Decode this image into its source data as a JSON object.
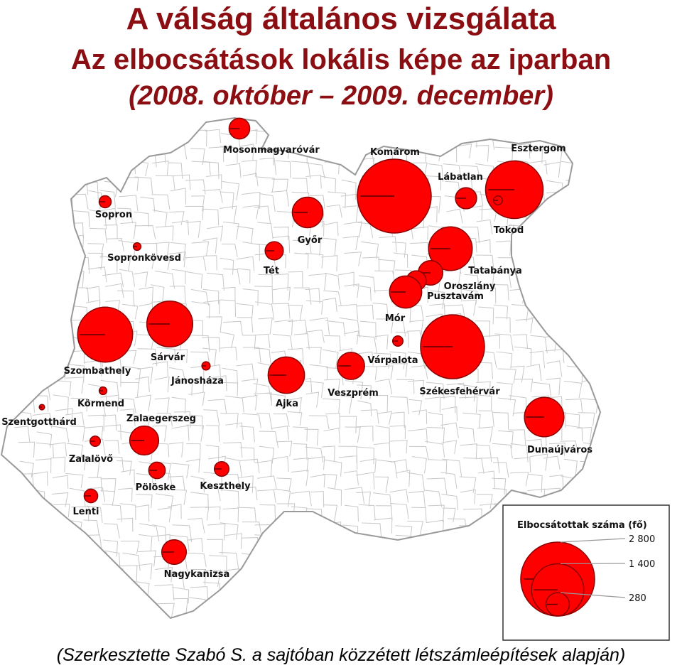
{
  "title": {
    "main": "A válság általános vizsgálata",
    "sub": "Az elbocsátások lokális képe az iparban",
    "period": "(2008. október – 2009. december)"
  },
  "credit": "(Szerkesztette Szabó S. a sajtóban közzétett létszámleépítések alapján)",
  "colors": {
    "title": "#8b0f12",
    "bubble": "#ff0000",
    "bubble_stroke": "#8a0000",
    "boundary": "#c8c8c8",
    "outline": "#999999"
  },
  "legend": {
    "title": "Elbocsátottak száma (fő)",
    "items": [
      {
        "label": "2 800",
        "value": 2800
      },
      {
        "label": "1 400",
        "value": 1400
      },
      {
        "label": "280",
        "value": 280
      }
    ]
  },
  "cities": [
    {
      "name": "Mosonmagyaróvár",
      "value": 220
    },
    {
      "name": "Komárom",
      "value": 2800
    },
    {
      "name": "Lábatlan",
      "value": 230
    },
    {
      "name": "Esztergom",
      "value": 1700
    },
    {
      "name": "Tokod",
      "value": 40
    },
    {
      "name": "Sopron",
      "value": 75
    },
    {
      "name": "Győr",
      "value": 480
    },
    {
      "name": "Sopronkövesd",
      "value": 30
    },
    {
      "name": "Tét",
      "value": 170
    },
    {
      "name": "Tatabánya",
      "value": 980
    },
    {
      "name": "Oroszlány",
      "value": 310
    },
    {
      "name": "Pusztavám",
      "value": 200
    },
    {
      "name": "Mór",
      "value": 530
    },
    {
      "name": "Szombathely",
      "value": 1550
    },
    {
      "name": "Sárvár",
      "value": 1080
    },
    {
      "name": "Jánosháza",
      "value": 35
    },
    {
      "name": "Várpalota",
      "value": 55
    },
    {
      "name": "Székesfehérvár",
      "value": 2100
    },
    {
      "name": "Ajka",
      "value": 680
    },
    {
      "name": "Veszprém",
      "value": 380
    },
    {
      "name": "Körmend",
      "value": 30
    },
    {
      "name": "Szentgotthárd",
      "value": 15
    },
    {
      "name": "Zalaegerszeg",
      "value": 430
    },
    {
      "name": "Dunaújváros",
      "value": 800
    },
    {
      "name": "Zalalövő",
      "value": 55
    },
    {
      "name": "Pölöske",
      "value": 140
    },
    {
      "name": "Keszthely",
      "value": 110
    },
    {
      "name": "Lenti",
      "value": 95
    },
    {
      "name": "Nagykanizsa",
      "value": 310
    }
  ]
}
